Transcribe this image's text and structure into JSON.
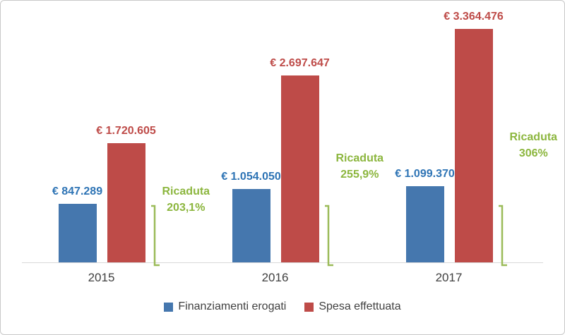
{
  "chart_data": {
    "type": "bar",
    "categories": [
      "2015",
      "2016",
      "2017"
    ],
    "series": [
      {
        "name": "Finanziamenti erogati",
        "color": "#4577AE",
        "values": [
          847289,
          1054050,
          1099370
        ],
        "labels": [
          "€ 847.289",
          "€ 1.054.050",
          "€ 1.099.370"
        ]
      },
      {
        "name": "Spesa effettuata",
        "color": "#BE4B48",
        "values": [
          1720605,
          2697647,
          3364476
        ],
        "labels": [
          "€ 1.720.605",
          "€ 2.697.647",
          "€ 3.364.476"
        ]
      }
    ],
    "annotations": [
      {
        "label": "Ricaduta",
        "value": "203,1%"
      },
      {
        "label": "Ricaduta",
        "value": "255,9%"
      },
      {
        "label": "Ricaduta",
        "value": "306%"
      }
    ],
    "ylim": [
      0,
      3364476
    ],
    "grid": false,
    "legend_position": "bottom",
    "annotation_color": "#8CB63E",
    "bracket_color": "#9BBB59",
    "label_colors": {
      "blue": "#2E74B5",
      "red": "#BE4B48"
    }
  }
}
